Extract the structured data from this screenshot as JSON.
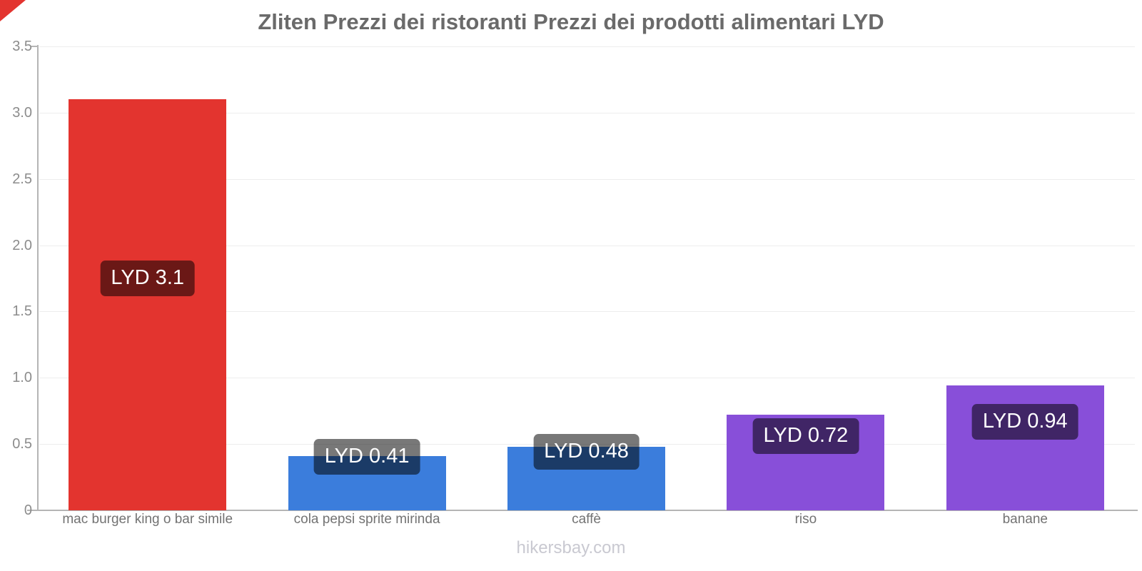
{
  "footer": "hikersbay.com",
  "colors": {
    "bar_red": "#e3342f",
    "bar_blue": "#3b7ddc",
    "bar_purple": "#884fd9",
    "value_label_bg": "rgba(0,0,0,0.53)",
    "value_label_text": "#ffffff",
    "axis": "#b5b5b5",
    "gridline": "#ededed",
    "ytick_text": "#8c8c8c",
    "xtick_text": "#737373",
    "title_text": "#6a6a6a",
    "footer_text": "#c9c9d1",
    "corner_ribbon": "#e3342f"
  },
  "chart_data": {
    "type": "bar",
    "title": "Zliten Prezzi dei ristoranti Prezzi dei prodotti alimentari LYD",
    "categories": [
      "mac burger king o bar simile",
      "cola pepsi sprite mirinda",
      "caffè",
      "riso",
      "banane"
    ],
    "values": [
      3.1,
      0.41,
      0.48,
      0.72,
      0.94
    ],
    "value_labels": [
      "LYD 3.1",
      "LYD 0.41",
      "LYD 0.48",
      "LYD 0.72",
      "LYD 0.94"
    ],
    "bar_colors": [
      "#e3342f",
      "#3b7ddc",
      "#3b7ddc",
      "#884fd9",
      "#884fd9"
    ],
    "xlabel": "",
    "ylabel": "",
    "ylim": [
      0,
      3.5
    ],
    "yticks": [
      0,
      0.5,
      1.0,
      1.5,
      2.0,
      2.5,
      3.0,
      3.5
    ],
    "ytick_labels": [
      "0",
      "0.5",
      "1.0",
      "1.5",
      "2.0",
      "2.5",
      "3.0",
      "3.5"
    ],
    "grid": true,
    "legend": false
  }
}
